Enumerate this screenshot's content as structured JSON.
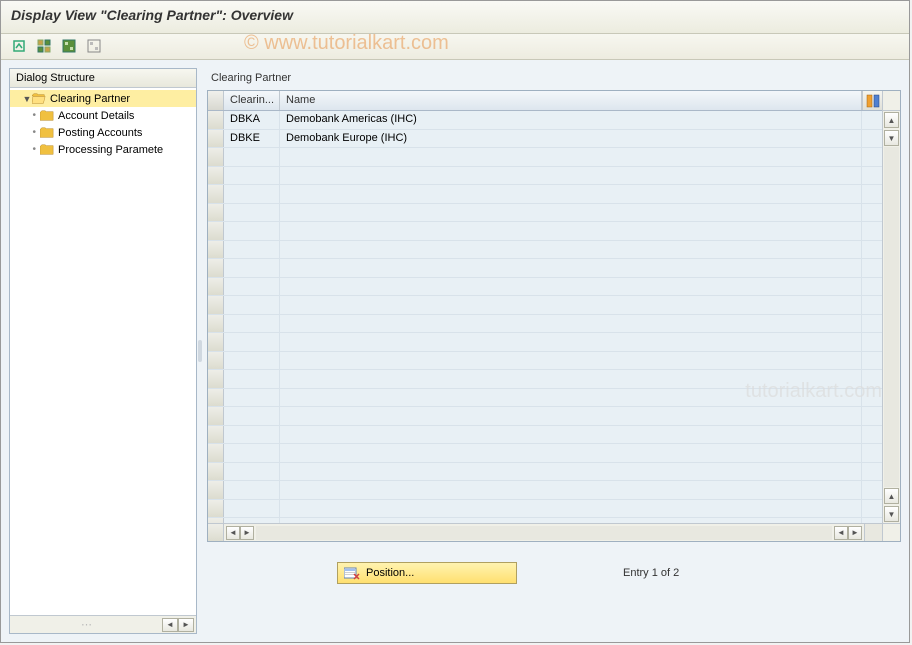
{
  "window": {
    "title": "Display View \"Clearing Partner\": Overview"
  },
  "toolbar": {
    "buttons": [
      "expand",
      "select-all",
      "select-block",
      "deselect"
    ]
  },
  "sidebar": {
    "header": "Dialog Structure",
    "tree": {
      "root": {
        "label": "Clearing Partner",
        "selected": true
      },
      "children": [
        {
          "label": "Account Details"
        },
        {
          "label": "Posting Accounts"
        },
        {
          "label": "Processing Paramete"
        }
      ]
    }
  },
  "panel": {
    "title": "Clearing Partner",
    "columns": {
      "code": "Clearin...",
      "name": "Name"
    },
    "rows": [
      {
        "code": "DBKA",
        "name": "Demobank Americas (IHC)"
      },
      {
        "code": "DBKE",
        "name": "Demobank Europe (IHC)"
      }
    ],
    "empty_rows": 21
  },
  "footer": {
    "position_label": "Position...",
    "entry_text": "Entry 1 of 2"
  },
  "watermark": {
    "top": "©  www.tutorialkart.com",
    "side": "tutorialkart.com"
  },
  "colors": {
    "highlight": "#feeea2",
    "cell_bg": "#e8f0f5",
    "content_bg": "#eef3f7"
  }
}
